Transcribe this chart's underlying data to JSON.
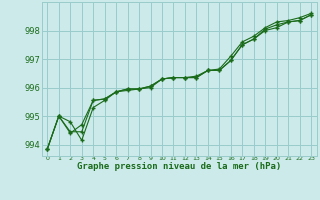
{
  "title": "Graphe pression niveau de la mer (hPa)",
  "background_color": "#cceaea",
  "plot_bg_color": "#cceaea",
  "grid_color": "#99cccc",
  "line_color": "#1a6b1a",
  "marker_color": "#1a6b1a",
  "xlim": [
    -0.5,
    23.5
  ],
  "ylim": [
    993.6,
    999.0
  ],
  "yticks": [
    994,
    995,
    996,
    997,
    998
  ],
  "xticks": [
    0,
    1,
    2,
    3,
    4,
    5,
    6,
    7,
    8,
    9,
    10,
    11,
    12,
    13,
    14,
    15,
    16,
    17,
    18,
    19,
    20,
    21,
    22,
    23
  ],
  "series": [
    [
      993.85,
      995.0,
      994.45,
      994.45,
      995.55,
      995.6,
      995.85,
      995.95,
      995.95,
      996.0,
      996.3,
      996.35,
      996.35,
      996.35,
      996.6,
      996.6,
      996.95,
      997.5,
      997.7,
      998.0,
      998.1,
      998.3,
      998.35,
      998.55
    ],
    [
      993.85,
      995.0,
      994.8,
      994.15,
      995.3,
      995.55,
      995.85,
      995.95,
      995.95,
      996.05,
      996.3,
      996.35,
      996.35,
      996.4,
      996.6,
      996.65,
      997.1,
      997.6,
      997.8,
      998.1,
      998.3,
      998.35,
      998.45,
      998.6
    ],
    [
      993.85,
      995.0,
      994.4,
      994.7,
      995.55,
      995.6,
      995.85,
      995.9,
      995.95,
      996.05,
      996.3,
      996.35,
      996.35,
      996.35,
      996.6,
      996.6,
      996.95,
      997.5,
      997.7,
      998.05,
      998.2,
      998.3,
      998.35,
      998.55
    ]
  ]
}
